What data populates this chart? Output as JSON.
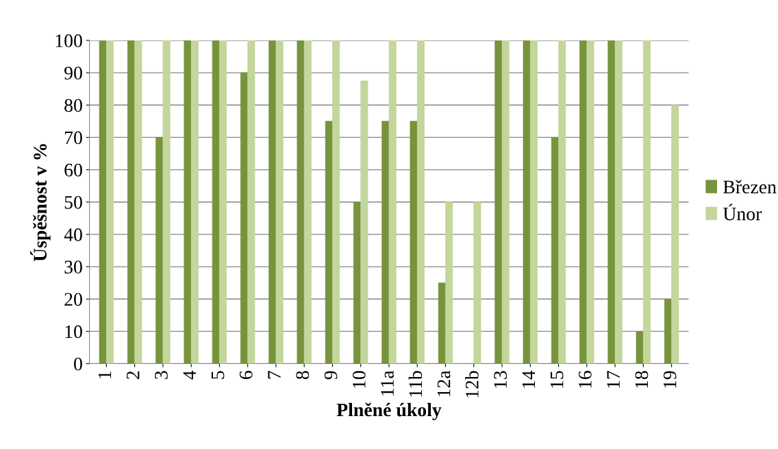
{
  "chart_data": {
    "type": "bar",
    "xlabel": "Plněné úkoly",
    "ylabel": "Úspěšnost v %",
    "categories": [
      "1",
      "2",
      "3",
      "4",
      "5",
      "6",
      "7",
      "8",
      "9",
      "10",
      "11a",
      "11b",
      "12a",
      "12b",
      "13",
      "14",
      "15",
      "16",
      "17",
      "18",
      "19"
    ],
    "series": [
      {
        "name": "Březen",
        "color": "#77933c",
        "values": [
          100,
          100,
          70,
          100,
          100,
          90,
          100,
          100,
          75,
          50,
          75,
          75,
          25,
          0,
          100,
          100,
          70,
          100,
          100,
          10,
          20
        ]
      },
      {
        "name": "Únor",
        "color": "#c3d69b",
        "values": [
          100,
          100,
          100,
          100,
          100,
          100,
          100,
          100,
          100,
          87.5,
          100,
          100,
          50,
          50,
          100,
          100,
          100,
          100,
          100,
          100,
          80
        ]
      }
    ],
    "ylim": [
      0,
      100
    ],
    "yticks": [
      0,
      10,
      20,
      30,
      40,
      50,
      60,
      70,
      80,
      90,
      100
    ],
    "grid": "y",
    "legend": "right"
  }
}
